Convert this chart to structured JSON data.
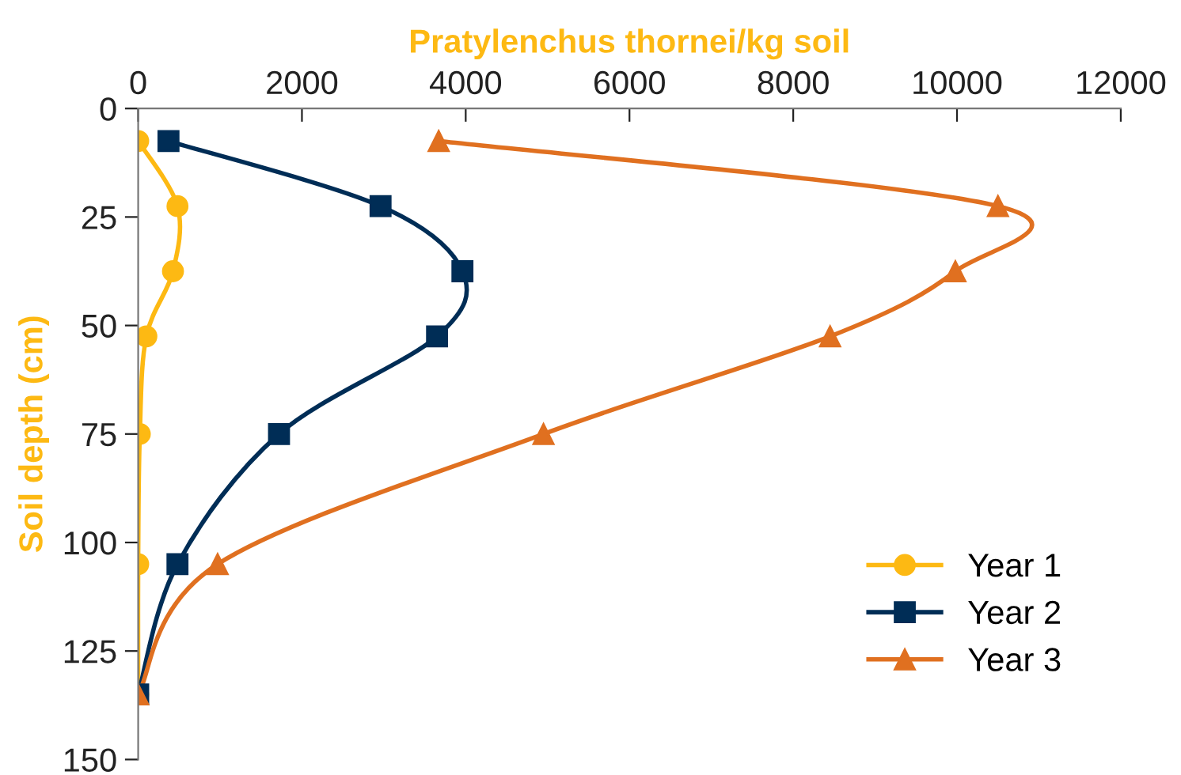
{
  "chart_data": {
    "type": "line",
    "xlabel": "Pratylenchus thornei/kg soil",
    "ylabel": "Soil depth (cm)",
    "xlim": [
      0,
      12000
    ],
    "xticks": [
      0,
      2000,
      4000,
      6000,
      8000,
      10000,
      12000
    ],
    "ylim": [
      150,
      0
    ],
    "yticks": [
      0,
      25,
      50,
      75,
      100,
      125,
      150
    ],
    "grid": false,
    "legend": "bottom right",
    "series": [
      {
        "name": "Year 1",
        "color": "#fdb913",
        "marker": "circle",
        "x": [
          0,
          480,
          425,
          100,
          20,
          0,
          0
        ],
        "values": [
          7.5,
          22.5,
          37.5,
          52.5,
          75,
          105,
          135
        ]
      },
      {
        "name": "Year 2",
        "color": "#002d56",
        "marker": "square",
        "x": [
          370,
          2960,
          3960,
          3650,
          1720,
          480,
          0
        ],
        "values": [
          7.5,
          22.5,
          37.5,
          52.5,
          75,
          105,
          135
        ]
      },
      {
        "name": "Year 3",
        "color": "#e07020",
        "marker": "triangle",
        "x": [
          3670,
          10500,
          9980,
          8450,
          4950,
          970,
          0
        ],
        "values": [
          7.5,
          22.5,
          37.5,
          52.5,
          75,
          105,
          135
        ]
      }
    ]
  }
}
